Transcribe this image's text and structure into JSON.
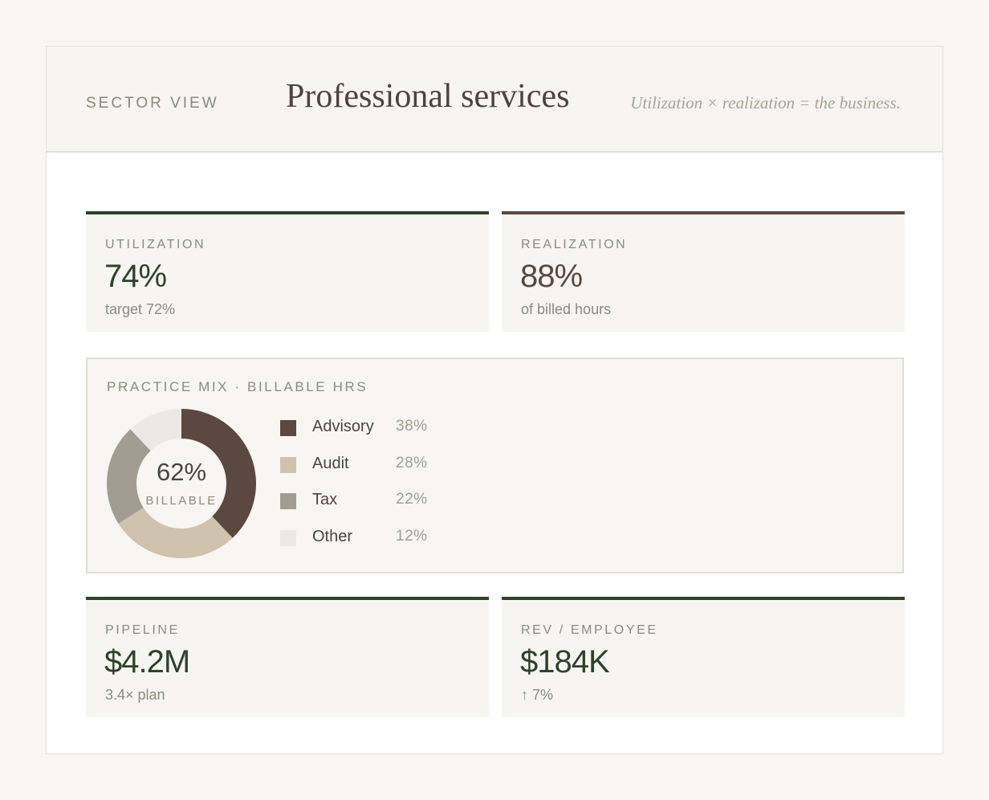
{
  "header": {
    "eyebrow": "SECTOR VIEW",
    "title": "Professional services",
    "tagline": "Utilization × realization = the business."
  },
  "kpis": {
    "utilization": {
      "label": "UTILIZATION",
      "value": "74%",
      "sub": "target 72%",
      "accent": "#2d4328"
    },
    "realization": {
      "label": "REALIZATION",
      "value": "88%",
      "sub": "of billed hours",
      "accent": "#5b4840"
    },
    "pipeline": {
      "label": "PIPELINE",
      "value": "$4.2M",
      "sub": "3.4× plan",
      "accent": "#2d4328"
    },
    "rev_per_employee": {
      "label": "REV / EMPLOYEE",
      "value": "$184K",
      "sub": "↑ 7%",
      "accent": "#2d4328"
    }
  },
  "practice_mix": {
    "label": "PRACTICE MIX · BILLABLE HRS",
    "center_value": "62%",
    "center_label": "BILLABLE",
    "items": [
      {
        "name": "Advisory",
        "pct_label": "38%",
        "value": 38,
        "color": "#5b4840"
      },
      {
        "name": "Audit",
        "pct_label": "28%",
        "value": 28,
        "color": "#d0c3ad"
      },
      {
        "name": "Tax",
        "pct_label": "22%",
        "value": 22,
        "color": "#a29d92"
      },
      {
        "name": "Other",
        "pct_label": "12%",
        "value": 12,
        "color": "#ebe9e6"
      }
    ]
  }
}
